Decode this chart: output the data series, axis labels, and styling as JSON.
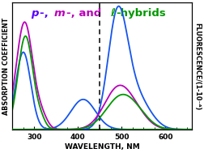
{
  "x_min": 250,
  "x_max": 660,
  "dashed_line_x": 450,
  "xlabel": "WAVELENGTH, NM",
  "ylabel_left": "ABSORPTION COEFFICIENT",
  "ylabel_right": "FLUORESCENCE/(1-10⁻ᴬ)",
  "colors": {
    "blue": "#1555ee",
    "magenta": "#bb00bb",
    "green": "#009900"
  },
  "title_parts": [
    {
      "text": "p",
      "color": "#5500ff",
      "style": "italic",
      "weight": "bold"
    },
    {
      "text": "-, ",
      "color": "#5500ff",
      "style": "normal",
      "weight": "bold"
    },
    {
      "text": "m",
      "color": "#bb00bb",
      "style": "italic",
      "weight": "bold"
    },
    {
      "text": "-, and ",
      "color": "#bb00bb",
      "style": "normal",
      "weight": "bold"
    },
    {
      "text": "ℓ",
      "color": "#009900",
      "style": "italic",
      "weight": "bold"
    },
    {
      "text": "-hybrids",
      "color": "#009900",
      "style": "normal",
      "weight": "bold"
    }
  ],
  "bg_color": "#ffffff",
  "abs_ylim": [
    0,
    1.18
  ],
  "fl_ylim": [
    0,
    1.18
  ],
  "title_fontsize": 9.5,
  "xlabel_fontsize": 6.5,
  "ylabel_fontsize": 5.8,
  "tick_labelsize": 6.5,
  "linewidth": 1.3,
  "xticks": [
    300,
    400,
    500,
    600
  ],
  "figsize": [
    2.52,
    1.89
  ],
  "dpi": 100
}
